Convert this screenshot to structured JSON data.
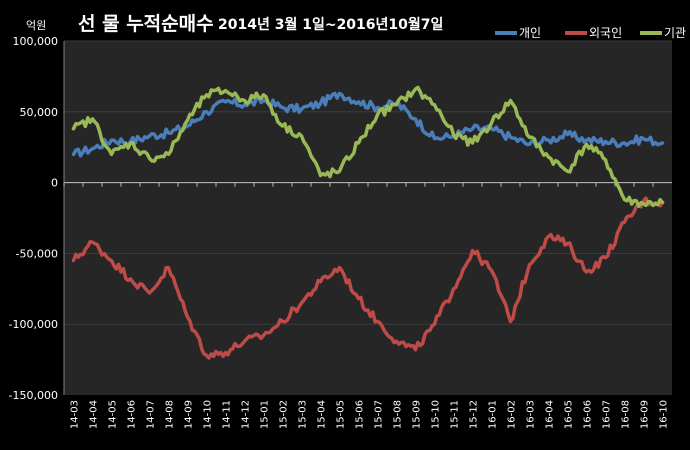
{
  "chart_data": {
    "type": "line",
    "title": "선  물  누적순매수",
    "subtitle": "2014년 3월 1일~2016년10월7일",
    "ylabel": "억원",
    "xlabel": "",
    "ylim": [
      -150000,
      100000
    ],
    "yticks": [
      100000,
      50000,
      0,
      -50000,
      -100000,
      -150000
    ],
    "ytick_labels": [
      "100,000",
      "50,000",
      "0",
      "-50,000",
      "-100,000",
      "-150,000"
    ],
    "categories": [
      "14-03",
      "14-04",
      "14-05",
      "14-06",
      "14-07",
      "14-08",
      "14-09",
      "14-10",
      "14-11",
      "14-12",
      "15-01",
      "15-02",
      "15-03",
      "15-04",
      "15-05",
      "15-06",
      "15-07",
      "15-08",
      "15-09",
      "15-10",
      "15-11",
      "15-12",
      "16-01",
      "16-02",
      "16-03",
      "16-04",
      "16-05",
      "16-06",
      "16-07",
      "16-08",
      "16-09",
      "16-10"
    ],
    "grid": true,
    "legend_position": "top-right",
    "series": [
      {
        "name": "개인",
        "color": "#4a7ebb",
        "values": [
          20000,
          24000,
          30000,
          29000,
          33000,
          35000,
          40000,
          50000,
          57000,
          55000,
          58000,
          53000,
          52000,
          56000,
          63000,
          57000,
          53000,
          56000,
          45000,
          31000,
          33000,
          38000,
          38000,
          32000,
          27000,
          30000,
          34000,
          30000,
          29000,
          28000,
          31000,
          28000
        ]
      },
      {
        "name": "외국인",
        "color": "#be4b48",
        "values": [
          -55000,
          -42000,
          -55000,
          -68000,
          -78000,
          -60000,
          -95000,
          -122000,
          -120000,
          -112000,
          -108000,
          -98000,
          -85000,
          -70000,
          -60000,
          -82000,
          -98000,
          -112000,
          -118000,
          -100000,
          -75000,
          -48000,
          -62000,
          -98000,
          -58000,
          -38000,
          -43000,
          -63000,
          -53000,
          -28000,
          -13000,
          -14000
        ]
      },
      {
        "name": "기관",
        "color": "#98b954",
        "values": [
          38000,
          45000,
          20000,
          28000,
          17000,
          20000,
          44000,
          62000,
          65000,
          58000,
          62000,
          40000,
          33000,
          5000,
          8000,
          28000,
          48000,
          55000,
          66000,
          55000,
          34000,
          28000,
          42000,
          58000,
          32000,
          18000,
          8000,
          27000,
          16000,
          -12000,
          -15000,
          -14000
        ]
      }
    ]
  }
}
